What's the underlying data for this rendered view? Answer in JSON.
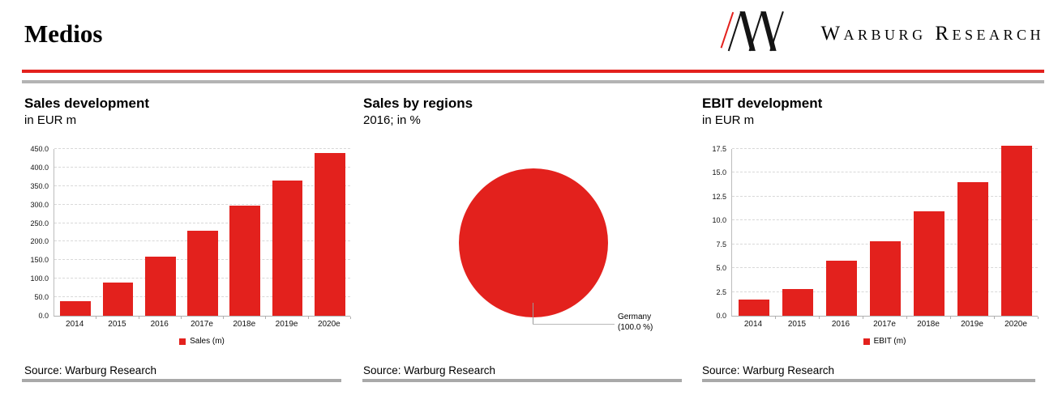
{
  "header": {
    "title": "Medios",
    "brand": "Warburg Research"
  },
  "chart_data": [
    {
      "type": "bar",
      "title": "Sales development",
      "subtitle": "in EUR m",
      "categories": [
        "2014",
        "2015",
        "2016",
        "2017e",
        "2018e",
        "2019e",
        "2020e"
      ],
      "values": [
        40,
        90,
        160,
        230,
        297,
        365,
        440
      ],
      "legend": "Sales (m)",
      "ylim": [
        0,
        450
      ],
      "ytick_step": 50,
      "ytick_labels": [
        "0.0",
        "50.0",
        "100.0",
        "150.0",
        "200.0",
        "250.0",
        "300.0",
        "350.0",
        "400.0",
        "450.0"
      ],
      "grid": true,
      "legend_position": "bottom",
      "bar_color": "#e3211d"
    },
    {
      "type": "pie",
      "title": "Sales by regions",
      "subtitle": "2016; in %",
      "slices": [
        {
          "label": "Germany",
          "value": 100.0,
          "display": "(100.0 %)",
          "color": "#e3211d"
        }
      ]
    },
    {
      "type": "bar",
      "title": "EBIT development",
      "subtitle": "in EUR m",
      "categories": [
        "2014",
        "2015",
        "2016",
        "2017e",
        "2018e",
        "2019e",
        "2020e"
      ],
      "values": [
        1.7,
        2.8,
        5.8,
        7.8,
        11.0,
        14.0,
        17.8
      ],
      "legend": "EBIT (m)",
      "ylim": [
        0,
        17.5
      ],
      "ytick_step": 2.5,
      "ytick_labels": [
        "0.0",
        "2.5",
        "5.0",
        "7.5",
        "10.0",
        "12.5",
        "15.0",
        "17.5"
      ],
      "grid": true,
      "legend_position": "bottom",
      "bar_color": "#e3211d"
    }
  ],
  "sources": [
    "Source: Warburg Research",
    "Source: Warburg Research",
    "Source: Warburg Research"
  ],
  "colors": {
    "accent_red": "#e3211d",
    "header_rule_gray": "#b3b3b3",
    "source_rule_gray": "#a9a9a9",
    "gridline_gray": "#d8d8d8"
  }
}
